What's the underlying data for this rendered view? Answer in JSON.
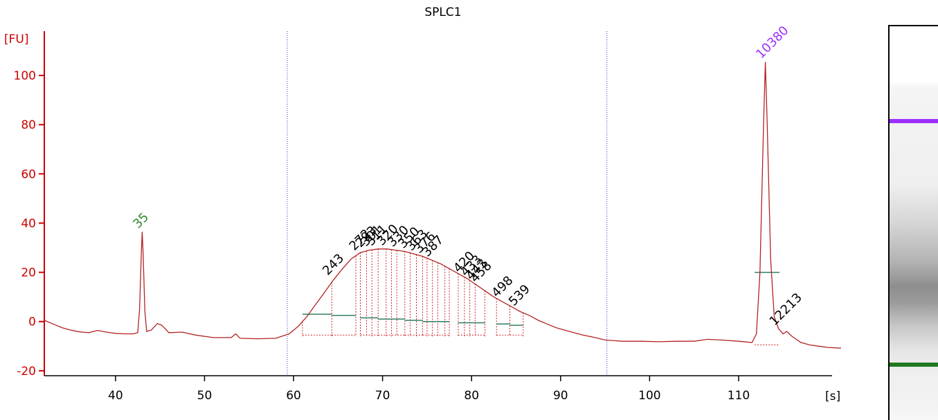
{
  "chart_data": {
    "type": "line",
    "title": "SPLC1",
    "ylabel": "[FU]",
    "xlabel": "[s]",
    "xlim": [
      32,
      115.5
    ],
    "ylim": [
      -22,
      118
    ],
    "x_ticks": [
      40,
      50,
      60,
      70,
      80,
      90,
      100,
      110
    ],
    "y_ticks": [
      -20,
      0,
      20,
      40,
      60,
      80,
      100
    ],
    "grid": false,
    "axis_color": "#cc0000",
    "trace_color": "#b22222",
    "region_markers_x": [
      59.3,
      95.2
    ],
    "series": [
      {
        "points": [
          [
            32.0,
            0.5
          ],
          [
            33.0,
            -1.0
          ],
          [
            34.0,
            -2.5
          ],
          [
            35.0,
            -3.5
          ],
          [
            36.0,
            -4.2
          ],
          [
            37.0,
            -4.5
          ],
          [
            38.0,
            -3.6
          ],
          [
            39.0,
            -4.3
          ],
          [
            40.0,
            -4.8
          ],
          [
            41.0,
            -5.0
          ],
          [
            42.0,
            -5.0
          ],
          [
            42.5,
            -4.5
          ],
          [
            42.7,
            5.0
          ],
          [
            42.9,
            28.0
          ],
          [
            43.0,
            36.5
          ],
          [
            43.1,
            28.0
          ],
          [
            43.3,
            4.0
          ],
          [
            43.5,
            -4.0
          ],
          [
            44.0,
            -3.5
          ],
          [
            44.7,
            -0.8
          ],
          [
            45.2,
            -1.5
          ],
          [
            46.0,
            -4.5
          ],
          [
            47.5,
            -4.3
          ],
          [
            49.0,
            -5.5
          ],
          [
            51.0,
            -6.5
          ],
          [
            53.0,
            -6.5
          ],
          [
            53.5,
            -5.0
          ],
          [
            54.0,
            -6.8
          ],
          [
            56.0,
            -7.0
          ],
          [
            58.0,
            -6.8
          ],
          [
            59.5,
            -5.0
          ],
          [
            60.5,
            -2.0
          ],
          [
            61.5,
            2.0
          ],
          [
            62.5,
            7.0
          ],
          [
            63.5,
            12.0
          ],
          [
            64.5,
            17.0
          ],
          [
            65.5,
            21.5
          ],
          [
            66.5,
            25.5
          ],
          [
            67.5,
            28.0
          ],
          [
            68.5,
            29.0
          ],
          [
            69.5,
            29.5
          ],
          [
            70.5,
            29.5
          ],
          [
            71.5,
            29.0
          ],
          [
            72.5,
            28.5
          ],
          [
            73.5,
            27.5
          ],
          [
            74.5,
            26.5
          ],
          [
            75.5,
            25.0
          ],
          [
            76.5,
            23.5
          ],
          [
            77.5,
            21.5
          ],
          [
            78.5,
            19.5
          ],
          [
            79.5,
            17.5
          ],
          [
            80.5,
            15.0
          ],
          [
            81.5,
            12.5
          ],
          [
            82.5,
            10.0
          ],
          [
            83.5,
            8.0
          ],
          [
            84.5,
            6.0
          ],
          [
            85.5,
            4.0
          ],
          [
            86.5,
            2.5
          ],
          [
            87.5,
            0.5
          ],
          [
            88.5,
            -1.0
          ],
          [
            89.5,
            -2.5
          ],
          [
            90.5,
            -3.5
          ],
          [
            91.5,
            -4.5
          ],
          [
            92.5,
            -5.5
          ],
          [
            93.5,
            -6.2
          ],
          [
            95.0,
            -7.5
          ],
          [
            97.0,
            -8.0
          ],
          [
            99.0,
            -8.0
          ],
          [
            101.0,
            -8.2
          ],
          [
            103.0,
            -8.0
          ],
          [
            105.0,
            -8.0
          ],
          [
            106.5,
            -7.2
          ],
          [
            108.0,
            -7.5
          ],
          [
            110.0,
            -8.0
          ],
          [
            111.5,
            -8.5
          ],
          [
            112.0,
            -5.0
          ],
          [
            112.4,
            20.0
          ],
          [
            112.8,
            80.0
          ],
          [
            113.0,
            105.5
          ],
          [
            113.2,
            82.0
          ],
          [
            113.6,
            25.0
          ],
          [
            114.0,
            2.0
          ],
          [
            114.5,
            -3.0
          ],
          [
            115.0,
            -5.0
          ],
          [
            115.4,
            -4.0
          ],
          [
            116.0,
            -6.0
          ],
          [
            117.0,
            -8.5
          ],
          [
            118.0,
            -9.5
          ],
          [
            119.0,
            -10.0
          ],
          [
            120.0,
            -10.5
          ],
          [
            121.5,
            -10.8
          ]
        ]
      }
    ],
    "peak_labels": [
      {
        "x": 43.0,
        "y": 36.5,
        "text": "35",
        "color": "#2e8b2e"
      },
      {
        "x": 113.0,
        "y": 105.5,
        "text": "10380",
        "color": "#9b30ff"
      },
      {
        "x": 64.3,
        "y": 17.5,
        "text": "243",
        "color": "#000000"
      },
      {
        "x": 67.3,
        "y": 27.5,
        "text": "272",
        "color": "#000000"
      },
      {
        "x": 68.0,
        "y": 28.8,
        "text": "293",
        "color": "#000000"
      },
      {
        "x": 68.6,
        "y": 29.2,
        "text": "301",
        "color": "#000000"
      },
      {
        "x": 69.2,
        "y": 29.4,
        "text": "311",
        "color": "#000000"
      },
      {
        "x": 70.4,
        "y": 29.5,
        "text": "320",
        "color": "#000000"
      },
      {
        "x": 71.6,
        "y": 29.0,
        "text": "330",
        "color": "#000000"
      },
      {
        "x": 72.8,
        "y": 28.4,
        "text": "350",
        "color": "#000000"
      },
      {
        "x": 73.7,
        "y": 27.4,
        "text": "363",
        "color": "#000000"
      },
      {
        "x": 74.6,
        "y": 26.4,
        "text": "376",
        "color": "#000000"
      },
      {
        "x": 75.5,
        "y": 25.0,
        "text": "387",
        "color": "#000000"
      },
      {
        "x": 79.0,
        "y": 18.5,
        "text": "420",
        "color": "#000000"
      },
      {
        "x": 79.8,
        "y": 17.0,
        "text": "433",
        "color": "#000000"
      },
      {
        "x": 80.4,
        "y": 15.5,
        "text": "443",
        "color": "#000000"
      },
      {
        "x": 80.9,
        "y": 14.5,
        "text": "458",
        "color": "#000000"
      },
      {
        "x": 83.3,
        "y": 8.5,
        "text": "498",
        "color": "#000000"
      },
      {
        "x": 85.2,
        "y": 5.0,
        "text": "539",
        "color": "#000000"
      },
      {
        "x": 114.5,
        "y": -3.0,
        "text": "12213",
        "color": "#000000"
      }
    ],
    "smear_regions": [
      {
        "x0": 61.0,
        "x1": 64.3,
        "y": 3.0
      },
      {
        "x0": 64.3,
        "x1": 67.0,
        "y": 2.5
      },
      {
        "x0": 67.5,
        "x1": 69.5,
        "y": 1.5
      },
      {
        "x0": 69.5,
        "x1": 72.5,
        "y": 1.0
      },
      {
        "x0": 72.5,
        "x1": 74.5,
        "y": 0.5
      },
      {
        "x0": 74.5,
        "x1": 77.5,
        "y": 0.0
      },
      {
        "x0": 78.5,
        "x1": 81.5,
        "y": -0.5
      },
      {
        "x0": 82.8,
        "x1": 84.3,
        "y": -1.0
      },
      {
        "x0": 84.3,
        "x1": 85.8,
        "y": -1.5
      },
      {
        "x0": 111.8,
        "x1": 114.6,
        "y": 20.0
      }
    ],
    "fragment_lines_x": [
      61.0,
      64.3,
      67.0,
      67.5,
      68.2,
      68.8,
      69.5,
      70.4,
      71.0,
      71.6,
      72.5,
      73.1,
      73.8,
      74.5,
      75.0,
      75.6,
      76.2,
      77.0,
      77.5,
      78.5,
      79.2,
      79.8,
      80.4,
      81.5,
      82.8,
      84.3,
      85.8
    ],
    "gel_bands": [
      {
        "position": 0.235,
        "color": "#9b30ff"
      },
      {
        "position": 0.855,
        "color": "#1f7a1f"
      }
    ]
  }
}
